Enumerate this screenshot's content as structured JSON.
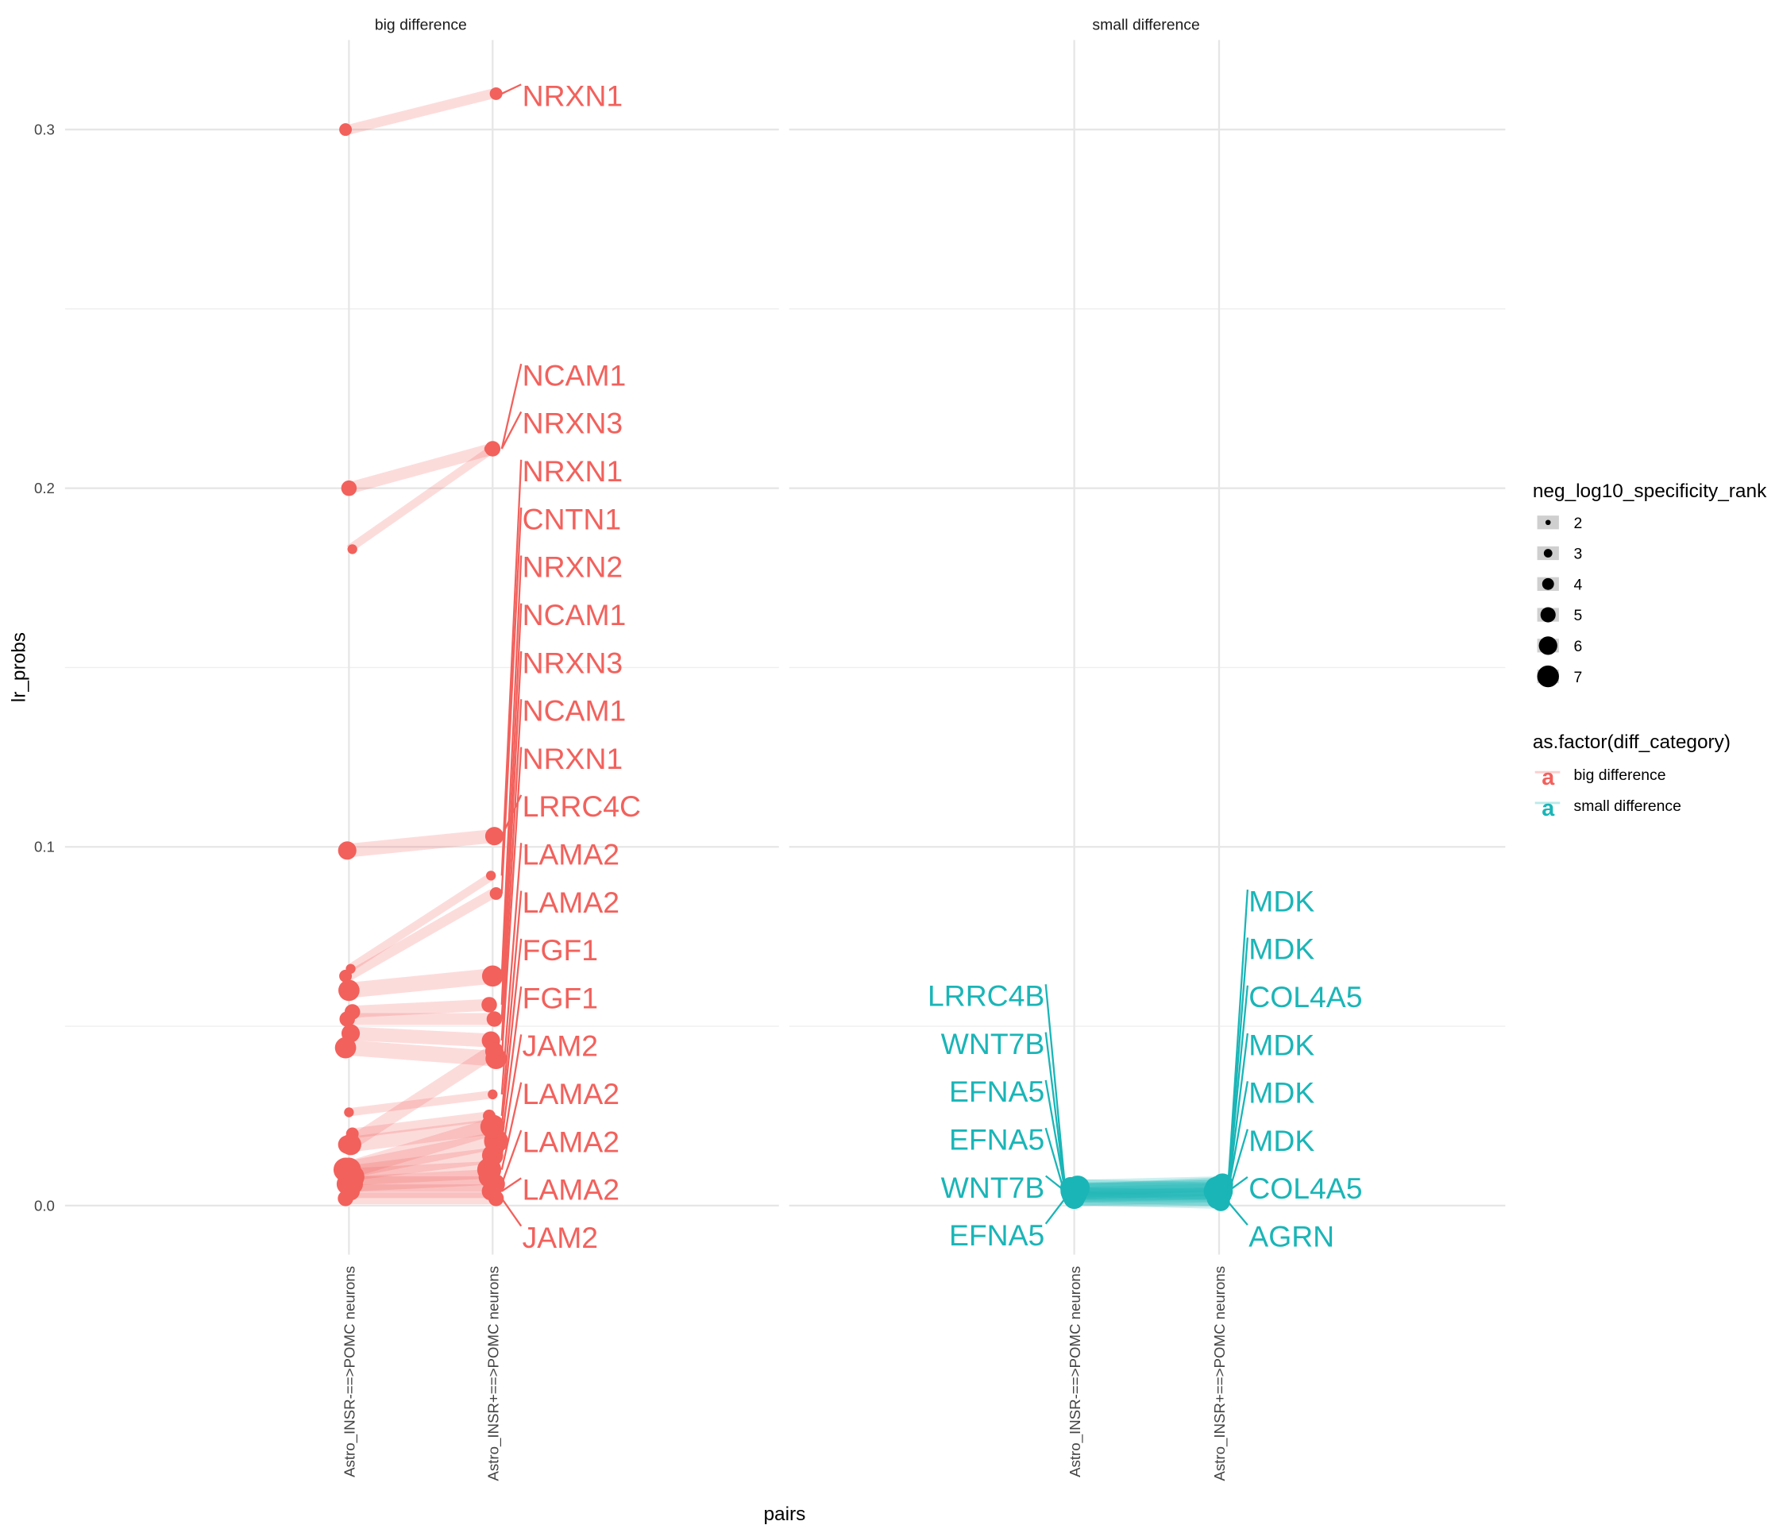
{
  "chart_data": {
    "type": "line",
    "subtype": "slope chart with points, faceted",
    "xlabel": "pairs",
    "ylabel": "lr_probs",
    "x_categories": [
      "Astro_INSR-==>POMC neurons",
      "Astro_INSR+==>POMC neurons"
    ],
    "ylim": [
      -0.012,
      0.325
    ],
    "y_ticks": [
      "0.0",
      "0.1",
      "0.2",
      "0.3"
    ],
    "y_tick_values": [
      0.0,
      0.1,
      0.2,
      0.3
    ],
    "grid": true,
    "colors": {
      "big difference": "#F2615C",
      "small difference": "#1AB5B7"
    },
    "legend_size": {
      "title": "neg_log10_specificity_rank",
      "values": [
        "2",
        "3",
        "4",
        "5",
        "6",
        "7"
      ],
      "placement": "right"
    },
    "legend_color": {
      "title": "as.factor(diff_category)",
      "entries": [
        "big difference",
        "small difference"
      ],
      "placement": "right"
    },
    "facets": [
      {
        "title": "big difference",
        "segments": [
          [
            0.3,
            0.31,
            3
          ],
          [
            0.2,
            0.211,
            4
          ],
          [
            0.183,
            0.211,
            2
          ],
          [
            0.099,
            0.103,
            5
          ],
          [
            0.066,
            0.092,
            2
          ],
          [
            0.064,
            0.087,
            3
          ],
          [
            0.06,
            0.064,
            6
          ],
          [
            0.054,
            0.056,
            4
          ],
          [
            0.052,
            0.052,
            4
          ],
          [
            0.048,
            0.046,
            5
          ],
          [
            0.044,
            0.041,
            6
          ],
          [
            0.026,
            0.031,
            2
          ],
          [
            0.02,
            0.025,
            3
          ],
          [
            0.017,
            0.043,
            5
          ],
          [
            0.017,
            0.022,
            6
          ],
          [
            0.01,
            0.018,
            7
          ],
          [
            0.009,
            0.014,
            6
          ],
          [
            0.008,
            0.01,
            7
          ],
          [
            0.006,
            0.006,
            6
          ],
          [
            0.004,
            0.004,
            5
          ],
          [
            0.002,
            0.002,
            4
          ],
          [
            0.01,
            0.022,
            7
          ],
          [
            0.006,
            0.008,
            6
          ]
        ],
        "left_labels": [],
        "right_labels": [
          {
            "gene": "NRXN1",
            "value": 0.31
          },
          {
            "gene": "NCAM1",
            "value": 0.211
          },
          {
            "gene": "NRXN3",
            "value": 0.211
          },
          {
            "gene": "NRXN1",
            "value": 0.092
          },
          {
            "gene": "CNTN1",
            "value": 0.087
          },
          {
            "gene": "NRXN2",
            "value": 0.064
          },
          {
            "gene": "NCAM1",
            "value": 0.056
          },
          {
            "gene": "NRXN3",
            "value": 0.052
          },
          {
            "gene": "NCAM1",
            "value": 0.046
          },
          {
            "gene": "NRXN1",
            "value": 0.041
          },
          {
            "gene": "LRRC4C",
            "value": 0.103
          },
          {
            "gene": "LAMA2",
            "value": 0.031
          },
          {
            "gene": "LAMA2",
            "value": 0.025
          },
          {
            "gene": "FGF1",
            "value": 0.022
          },
          {
            "gene": "FGF1",
            "value": 0.018
          },
          {
            "gene": "JAM2",
            "value": 0.014
          },
          {
            "gene": "LAMA2",
            "value": 0.01
          },
          {
            "gene": "LAMA2",
            "value": 0.006
          },
          {
            "gene": "LAMA2",
            "value": 0.004
          },
          {
            "gene": "JAM2",
            "value": 0.002
          }
        ]
      },
      {
        "title": "small difference",
        "segments": [
          [
            0.005,
            0.006,
            6
          ],
          [
            0.004,
            0.005,
            7
          ],
          [
            0.004,
            0.005,
            6
          ],
          [
            0.004,
            0.004,
            7
          ],
          [
            0.003,
            0.004,
            6
          ],
          [
            0.003,
            0.003,
            5
          ],
          [
            0.002,
            0.003,
            6
          ],
          [
            0.005,
            0.004,
            7
          ],
          [
            0.002,
            0.001,
            5
          ],
          [
            0.003,
            0.002,
            6
          ],
          [
            0.004,
            0.006,
            5
          ],
          [
            0.002,
            0.002,
            5
          ]
        ],
        "left_labels": [
          {
            "gene": "LRRC4B",
            "value": 0.005
          },
          {
            "gene": "WNT7B",
            "value": 0.004
          },
          {
            "gene": "EFNA5",
            "value": 0.004
          },
          {
            "gene": "EFNA5",
            "value": 0.003
          },
          {
            "gene": "WNT7B",
            "value": 0.004
          },
          {
            "gene": "EFNA5",
            "value": 0.002
          }
        ],
        "right_labels": [
          {
            "gene": "MDK",
            "value": 0.006
          },
          {
            "gene": "MDK",
            "value": 0.005
          },
          {
            "gene": "COL4A5",
            "value": 0.005
          },
          {
            "gene": "MDK",
            "value": 0.004
          },
          {
            "gene": "MDK",
            "value": 0.004
          },
          {
            "gene": "MDK",
            "value": 0.003
          },
          {
            "gene": "COL4A5",
            "value": 0.004
          },
          {
            "gene": "AGRN",
            "value": 0.001
          }
        ]
      }
    ]
  }
}
